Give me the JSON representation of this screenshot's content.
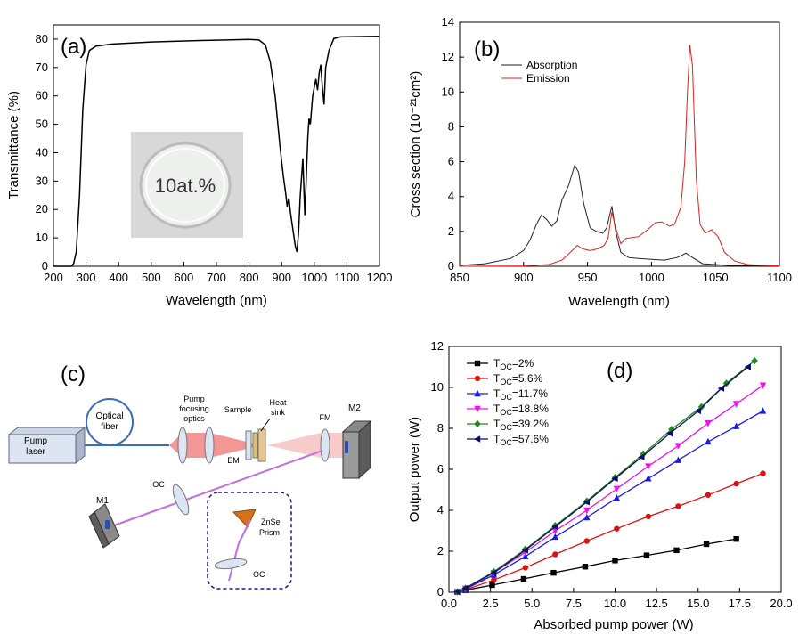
{
  "chart_data": [
    {
      "panel_label": "(a)",
      "type": "line",
      "xlabel": "Wavelength (nm)",
      "ylabel": "Transmittance (%)",
      "xlim": [
        200,
        1200
      ],
      "ylim": [
        0,
        85
      ],
      "xticks": [
        200,
        300,
        400,
        500,
        600,
        700,
        800,
        900,
        1000,
        1100,
        1200
      ],
      "yticks": [
        0,
        10,
        20,
        30,
        40,
        50,
        60,
        70,
        80
      ],
      "inset_text": "10at.%",
      "series": [
        {
          "color": "#000000",
          "points": [
            [
              200,
              0
            ],
            [
              255,
              0
            ],
            [
              262,
              1
            ],
            [
              270,
              5
            ],
            [
              280,
              25
            ],
            [
              290,
              55
            ],
            [
              300,
              71
            ],
            [
              310,
              76
            ],
            [
              330,
              77.5
            ],
            [
              380,
              78.3
            ],
            [
              500,
              79
            ],
            [
              650,
              79.5
            ],
            [
              800,
              79.9
            ],
            [
              830,
              79.7
            ],
            [
              850,
              78
            ],
            [
              865,
              72
            ],
            [
              880,
              60
            ],
            [
              895,
              42
            ],
            [
              905,
              32
            ],
            [
              912,
              26
            ],
            [
              917,
              21
            ],
            [
              922,
              24
            ],
            [
              927,
              19
            ],
            [
              932,
              15
            ],
            [
              937,
              11
            ],
            [
              942,
              7
            ],
            [
              947,
              5
            ],
            [
              952,
              12
            ],
            [
              957,
              25
            ],
            [
              962,
              33
            ],
            [
              965,
              38
            ],
            [
              968,
              28
            ],
            [
              971,
              18
            ],
            [
              975,
              30
            ],
            [
              980,
              45
            ],
            [
              984,
              52
            ],
            [
              988,
              50
            ],
            [
              995,
              60
            ],
            [
              1005,
              66
            ],
            [
              1010,
              62
            ],
            [
              1015,
              68
            ],
            [
              1020,
              71
            ],
            [
              1025,
              63
            ],
            [
              1030,
              57
            ],
            [
              1035,
              70
            ],
            [
              1045,
              76
            ],
            [
              1060,
              80.2
            ],
            [
              1080,
              80.8
            ],
            [
              1200,
              81
            ]
          ]
        }
      ]
    },
    {
      "panel_label": "(b)",
      "type": "line",
      "xlabel": "Wavelength (nm)",
      "ylabel": "Cross section (10⁻²¹cm²)",
      "xlim": [
        850,
        1100
      ],
      "ylim": [
        0,
        14
      ],
      "xticks": [
        850,
        900,
        950,
        1000,
        1050,
        1100
      ],
      "yticks": [
        0,
        2,
        4,
        6,
        8,
        10,
        12,
        14
      ],
      "legend_position": "top-left",
      "series": [
        {
          "name": "Absorption",
          "color": "#222222",
          "points": [
            [
              850,
              0.05
            ],
            [
              870,
              0.15
            ],
            [
              890,
              0.45
            ],
            [
              900,
              0.9
            ],
            [
              905,
              1.5
            ],
            [
              910,
              2.4
            ],
            [
              914,
              2.95
            ],
            [
              918,
              2.7
            ],
            [
              922,
              2.3
            ],
            [
              926,
              2.6
            ],
            [
              930,
              3.8
            ],
            [
              935,
              4.6
            ],
            [
              940,
              5.8
            ],
            [
              943,
              5.4
            ],
            [
              947,
              3.6
            ],
            [
              952,
              2.2
            ],
            [
              957,
              2.0
            ],
            [
              962,
              1.9
            ],
            [
              965,
              2.2
            ],
            [
              969,
              3.45
            ],
            [
              972,
              2.0
            ],
            [
              976,
              0.8
            ],
            [
              982,
              0.5
            ],
            [
              990,
              0.45
            ],
            [
              1000,
              0.4
            ],
            [
              1010,
              0.35
            ],
            [
              1020,
              0.5
            ],
            [
              1027,
              0.75
            ],
            [
              1032,
              0.5
            ],
            [
              1040,
              0.15
            ],
            [
              1060,
              0.05
            ],
            [
              1100,
              0.02
            ]
          ]
        },
        {
          "name": "Emission",
          "color": "#e02020",
          "points": [
            [
              850,
              0
            ],
            [
              900,
              0.02
            ],
            [
              920,
              0.1
            ],
            [
              930,
              0.35
            ],
            [
              938,
              0.9
            ],
            [
              942,
              1.2
            ],
            [
              946,
              1.0
            ],
            [
              952,
              0.9
            ],
            [
              958,
              1.0
            ],
            [
              963,
              1.2
            ],
            [
              966,
              1.6
            ],
            [
              969,
              3.1
            ],
            [
              972,
              2.2
            ],
            [
              976,
              1.3
            ],
            [
              980,
              1.6
            ],
            [
              990,
              1.7
            ],
            [
              997,
              2.1
            ],
            [
              1003,
              2.5
            ],
            [
              1008,
              2.55
            ],
            [
              1014,
              2.3
            ],
            [
              1018,
              2.4
            ],
            [
              1023,
              3.4
            ],
            [
              1026,
              6.0
            ],
            [
              1028,
              9.8
            ],
            [
              1030,
              12.7
            ],
            [
              1032,
              11.5
            ],
            [
              1035,
              5.0
            ],
            [
              1038,
              2.4
            ],
            [
              1042,
              1.9
            ],
            [
              1047,
              2.1
            ],
            [
              1052,
              1.7
            ],
            [
              1057,
              0.8
            ],
            [
              1065,
              0.3
            ],
            [
              1075,
              0.1
            ],
            [
              1090,
              0.04
            ],
            [
              1100,
              0.02
            ]
          ]
        }
      ]
    },
    {
      "panel_label": "(d)",
      "type": "line",
      "xlabel": "Absorbed pump power (W)",
      "ylabel": "Output power (W)",
      "xlim": [
        0,
        20
      ],
      "ylim": [
        0,
        12
      ],
      "xticks": [
        0.0,
        2.5,
        5.0,
        7.5,
        10.0,
        12.5,
        15.0,
        17.5,
        20.0
      ],
      "xtick_labels": [
        "0.0",
        "2.5",
        "5.0",
        "7.5",
        "10.0",
        "12.5",
        "15.0",
        "17.5",
        "20.0"
      ],
      "yticks": [
        0,
        2,
        4,
        6,
        8,
        10,
        12
      ],
      "legend_position": "top-left",
      "series": [
        {
          "name_main": "T",
          "name_sub": "OC",
          "name_value": "=2%",
          "color": "#000000",
          "marker": "square",
          "points": [
            [
              0.5,
              0.02
            ],
            [
              1.0,
              0.1
            ],
            [
              2.6,
              0.35
            ],
            [
              4.5,
              0.65
            ],
            [
              6.3,
              0.95
            ],
            [
              8.2,
              1.25
            ],
            [
              10.0,
              1.55
            ],
            [
              11.9,
              1.8
            ],
            [
              13.7,
              2.05
            ],
            [
              15.5,
              2.35
            ],
            [
              17.3,
              2.6
            ]
          ]
        },
        {
          "name_main": "T",
          "name_sub": "OC",
          "name_value": "=5.6%",
          "color": "#e01010",
          "marker": "circle",
          "points": [
            [
              0.5,
              0.02
            ],
            [
              1.0,
              0.12
            ],
            [
              2.7,
              0.6
            ],
            [
              4.6,
              1.2
            ],
            [
              6.4,
              1.85
            ],
            [
              8.3,
              2.5
            ],
            [
              10.1,
              3.1
            ],
            [
              12.0,
              3.7
            ],
            [
              13.8,
              4.2
            ],
            [
              15.6,
              4.75
            ],
            [
              17.3,
              5.3
            ],
            [
              18.9,
              5.8
            ]
          ]
        },
        {
          "name_main": "T",
          "name_sub": "OC",
          "name_value": "=11.7%",
          "color": "#1a1aee",
          "marker": "triangle-up",
          "points": [
            [
              0.5,
              0.02
            ],
            [
              1.0,
              0.15
            ],
            [
              2.7,
              0.85
            ],
            [
              4.6,
              1.75
            ],
            [
              6.4,
              2.7
            ],
            [
              8.3,
              3.65
            ],
            [
              10.1,
              4.6
            ],
            [
              12.0,
              5.55
            ],
            [
              13.8,
              6.45
            ],
            [
              15.6,
              7.35
            ],
            [
              17.3,
              8.1
            ],
            [
              18.9,
              8.85
            ]
          ]
        },
        {
          "name_main": "T",
          "name_sub": "OC",
          "name_value": "=18.8%",
          "color": "#ee10ee",
          "marker": "triangle-down",
          "points": [
            [
              0.5,
              0.02
            ],
            [
              1.0,
              0.18
            ],
            [
              2.7,
              0.95
            ],
            [
              4.6,
              1.95
            ],
            [
              6.4,
              3.0
            ],
            [
              8.3,
              4.0
            ],
            [
              10.1,
              5.05
            ],
            [
              12.0,
              6.15
            ],
            [
              13.8,
              7.15
            ],
            [
              15.6,
              8.25
            ],
            [
              17.3,
              9.2
            ],
            [
              18.9,
              10.1
            ]
          ]
        },
        {
          "name_main": "T",
          "name_sub": "OC",
          "name_value": "=39.2%",
          "color": "#1f8a1f",
          "marker": "diamond",
          "points": [
            [
              0.5,
              0.02
            ],
            [
              1.0,
              0.2
            ],
            [
              2.7,
              1.0
            ],
            [
              4.6,
              2.1
            ],
            [
              6.4,
              3.25
            ],
            [
              8.3,
              4.45
            ],
            [
              10.0,
              5.6
            ],
            [
              11.7,
              6.75
            ],
            [
              13.4,
              7.95
            ],
            [
              15.2,
              9.05
            ],
            [
              16.7,
              10.2
            ],
            [
              18.4,
              11.3
            ]
          ]
        },
        {
          "name_main": "T",
          "name_sub": "OC",
          "name_value": "=57.6%",
          "color": "#0d0d6e",
          "marker": "triangle-left",
          "points": [
            [
              0.5,
              0.02
            ],
            [
              1.0,
              0.2
            ],
            [
              2.7,
              0.95
            ],
            [
              4.6,
              2.05
            ],
            [
              6.4,
              3.2
            ],
            [
              8.3,
              4.4
            ],
            [
              10.0,
              5.55
            ],
            [
              11.6,
              6.6
            ],
            [
              13.3,
              7.75
            ],
            [
              15.0,
              8.85
            ],
            [
              16.4,
              9.95
            ],
            [
              18.0,
              11.0
            ]
          ]
        }
      ]
    }
  ],
  "diagram_c": {
    "panel_label": "(c)",
    "labels": {
      "pump_laser_line1": "Pump",
      "pump_laser_line2": "laser",
      "optical_fiber_line1": "Optical",
      "optical_fiber_line2": "fiber",
      "pump_optics_line1": "Pump",
      "pump_optics_line2": "focusing",
      "pump_optics_line3": "optics",
      "sample": "Sample",
      "heat_sink_line1": "Heat",
      "heat_sink_line2": "sink",
      "em": "EM",
      "fm": "FM",
      "m2": "M2",
      "m1": "M1",
      "oc1": "OC",
      "oc2": "OC",
      "prism_line1": "ZnSe",
      "prism_line2": "Prism"
    }
  }
}
